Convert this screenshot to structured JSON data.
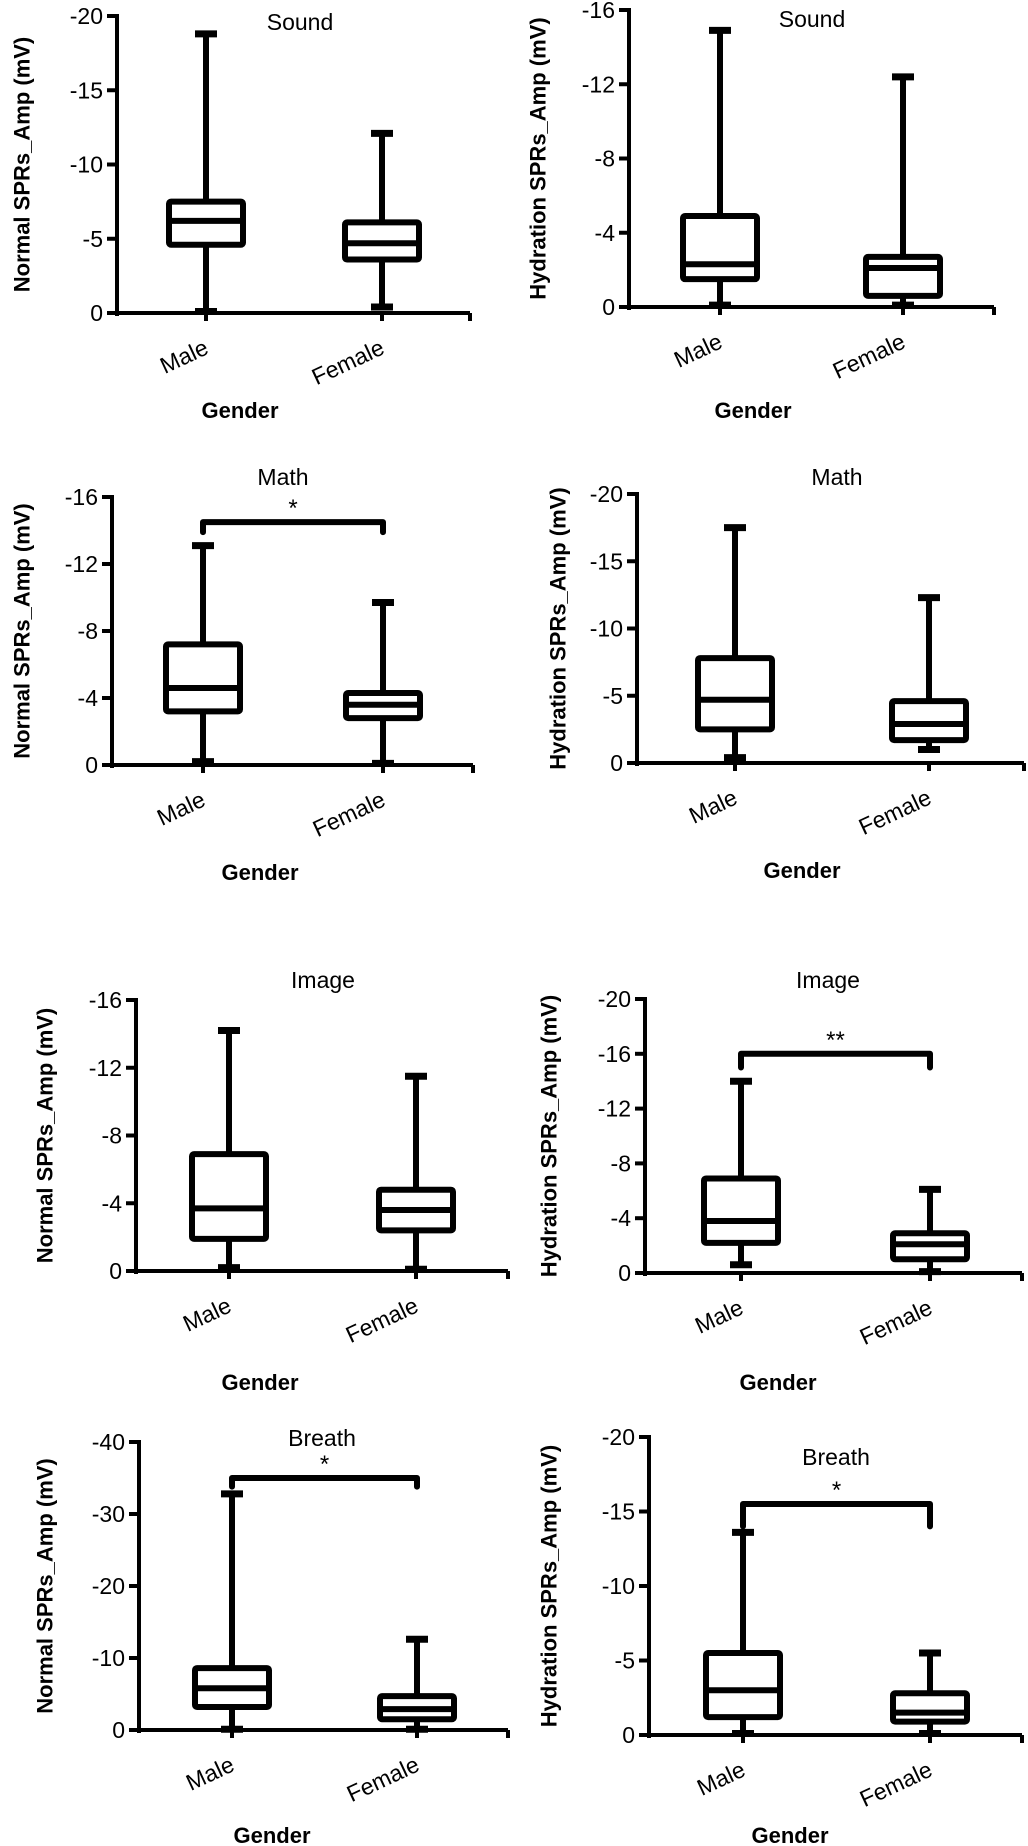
{
  "chart_data": [
    {
      "type": "boxplot",
      "title": "Sound",
      "xlabel": "Gender",
      "ylabel": "Normal SPRs_Amp  (mV)",
      "ylim": [
        0,
        -20
      ],
      "yticks": [
        0,
        -5,
        -10,
        -15,
        -20
      ],
      "ytick_labels": [
        "0",
        "-5",
        "-10",
        "-15",
        "-20"
      ],
      "categories": [
        "Male",
        "Female"
      ],
      "boxes": [
        {
          "name": "Male",
          "min": -0.1,
          "q1": -4.6,
          "median": -6.2,
          "q3": -7.5,
          "max": -18.8
        },
        {
          "name": "Female",
          "min": -0.4,
          "q1": -3.6,
          "median": -4.7,
          "q3": -6.1,
          "max": -12.1
        }
      ],
      "significance": null
    },
    {
      "type": "boxplot",
      "title": "Sound",
      "xlabel": "Gender",
      "ylabel": "Hydration SPRs_Amp  (mV)",
      "ylim": [
        0,
        -16
      ],
      "yticks": [
        0,
        -4,
        -8,
        -12,
        -16
      ],
      "ytick_labels": [
        "0",
        "-4",
        "-8",
        "-12",
        "-16"
      ],
      "categories": [
        "Male",
        "Female"
      ],
      "boxes": [
        {
          "name": "Male",
          "min": -0.1,
          "q1": -1.5,
          "median": -2.3,
          "q3": -4.9,
          "max": -14.9
        },
        {
          "name": "Female",
          "min": -0.1,
          "q1": -0.6,
          "median": -2.1,
          "q3": -2.7,
          "max": -12.4
        }
      ],
      "significance": null
    },
    {
      "type": "boxplot",
      "title": "Math",
      "xlabel": "Gender",
      "ylabel": "Normal SPRs_Amp  (mV)",
      "ylim": [
        0,
        -16
      ],
      "yticks": [
        0,
        -4,
        -8,
        -12,
        -16
      ],
      "ytick_labels": [
        "0",
        "-4",
        "-8",
        "-12",
        "-16"
      ],
      "categories": [
        "Male",
        "Female"
      ],
      "boxes": [
        {
          "name": "Male",
          "min": -0.2,
          "q1": -3.2,
          "median": -4.6,
          "q3": -7.2,
          "max": -13.1
        },
        {
          "name": "Female",
          "min": -0.1,
          "q1": -2.8,
          "median": -3.6,
          "q3": -4.3,
          "max": -9.7
        }
      ],
      "significance": {
        "label": "*",
        "level": -14.5,
        "drop": 0.6
      }
    },
    {
      "type": "boxplot",
      "title": "Math",
      "xlabel": "Gender",
      "ylabel": "Hydration SPRs_Amp  (mV)",
      "ylim": [
        0,
        -20
      ],
      "yticks": [
        0,
        -5,
        -10,
        -15,
        -20
      ],
      "ytick_labels": [
        "0",
        "-5",
        "-10",
        "-15",
        "-20"
      ],
      "categories": [
        "Male",
        "Female"
      ],
      "boxes": [
        {
          "name": "Male",
          "min": -0.4,
          "q1": -2.5,
          "median": -4.7,
          "q3": -7.8,
          "max": -17.5
        },
        {
          "name": "Female",
          "min": -1.0,
          "q1": -1.7,
          "median": -2.9,
          "q3": -4.6,
          "max": -12.3
        }
      ],
      "significance": null
    },
    {
      "type": "boxplot",
      "title": "Image",
      "xlabel": "Gender",
      "ylabel": "Normal SPRs_Amp  (mV)",
      "ylim": [
        0,
        -16
      ],
      "yticks": [
        0,
        -4,
        -8,
        -12,
        -16
      ],
      "ytick_labels": [
        "0",
        "-4",
        "-8",
        "-12",
        "-16"
      ],
      "categories": [
        "Male",
        "Female"
      ],
      "boxes": [
        {
          "name": "Male",
          "min": -0.2,
          "q1": -1.9,
          "median": -3.7,
          "q3": -6.9,
          "max": -14.2
        },
        {
          "name": "Female",
          "min": -0.1,
          "q1": -2.4,
          "median": -3.6,
          "q3": -4.8,
          "max": -11.5
        }
      ],
      "significance": null
    },
    {
      "type": "boxplot",
      "title": "Image",
      "xlabel": "Gender",
      "ylabel": "Hydration SPRs_Amp  (mV)",
      "ylim": [
        0,
        -20
      ],
      "yticks": [
        0,
        -4,
        -8,
        -12,
        -16,
        -20
      ],
      "ytick_labels": [
        "0",
        "-4",
        "-8",
        "-12",
        "-16",
        "-20"
      ],
      "categories": [
        "Male",
        "Female"
      ],
      "boxes": [
        {
          "name": "Male",
          "min": -0.6,
          "q1": -2.2,
          "median": -3.8,
          "q3": -6.9,
          "max": -14.0
        },
        {
          "name": "Female",
          "min": -0.1,
          "q1": -1.0,
          "median": -2.1,
          "q3": -2.9,
          "max": -6.1
        }
      ],
      "significance": {
        "label": "**",
        "level": -16.0,
        "drop": 1.0
      }
    },
    {
      "type": "boxplot",
      "title": "Breath",
      "xlabel": "Gender",
      "ylabel": "Normal SPRs_Amp  (mV)",
      "ylim": [
        0,
        -40
      ],
      "yticks": [
        0,
        -10,
        -20,
        -30,
        -40
      ],
      "ytick_labels": [
        "0",
        "-10",
        "-20",
        "-30",
        "-40"
      ],
      "categories": [
        "Male",
        "Female"
      ],
      "boxes": [
        {
          "name": "Male",
          "min": -0.1,
          "q1": -3.2,
          "median": -5.8,
          "q3": -8.6,
          "max": -32.8
        },
        {
          "name": "Female",
          "min": -0.1,
          "q1": -1.5,
          "median": -2.9,
          "q3": -4.7,
          "max": -12.6
        }
      ],
      "significance": {
        "label": "*",
        "level": -35.0,
        "drop": 1.2
      }
    },
    {
      "type": "boxplot",
      "title": "Breath",
      "xlabel": "Gender",
      "ylabel": "Hydration SPRs_Amp  (mV)",
      "ylim": [
        0,
        -20
      ],
      "yticks": [
        0,
        -5,
        -10,
        -15,
        -20
      ],
      "ytick_labels": [
        "0",
        "-5",
        "-10",
        "-15",
        "-20"
      ],
      "categories": [
        "Male",
        "Female"
      ],
      "boxes": [
        {
          "name": "Male",
          "min": -0.1,
          "q1": -1.2,
          "median": -3.0,
          "q3": -5.5,
          "max": -13.6
        },
        {
          "name": "Female",
          "min": -0.1,
          "q1": -0.9,
          "median": -1.5,
          "q3": -2.8,
          "max": -5.5
        }
      ],
      "significance": {
        "label": "*",
        "level": -15.5,
        "drop": 1.5
      }
    }
  ]
}
